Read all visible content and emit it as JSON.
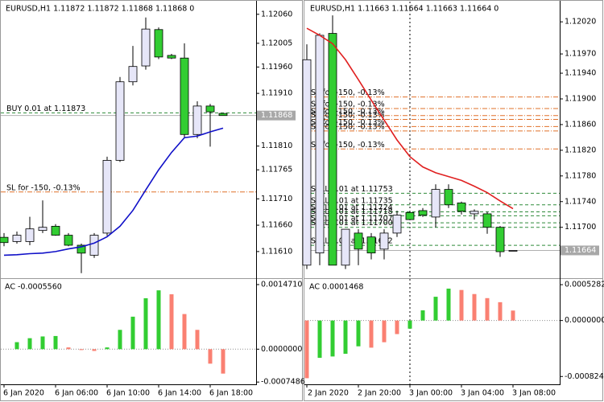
{
  "chart_data": [
    {
      "type": "candlestick",
      "title": "EURUSD,H1  1.11872 1.11872 1.11868 1.11868  0",
      "categories": [
        "6 Jan 2020",
        null,
        null,
        null,
        "6 Jan 06:00",
        null,
        null,
        null,
        "6 Jan 10:00",
        null,
        null,
        null,
        "6 Jan 14:00",
        null,
        null,
        null,
        "6 Jan 18:00",
        null
      ],
      "open": [
        1.11637,
        1.11629,
        1.11629,
        1.1165,
        1.11658,
        1.11641,
        1.11622,
        1.11603,
        1.11645,
        1.11783,
        1.11932,
        1.11962,
        1.12031,
        1.11982,
        1.11977,
        1.11832,
        1.11886,
        1.11872
      ],
      "high": [
        1.11645,
        1.11648,
        1.11676,
        1.11707,
        1.11662,
        1.11645,
        1.11625,
        1.11645,
        1.1179,
        1.11941,
        1.12,
        1.12054,
        1.12035,
        1.11985,
        1.12005,
        1.11895,
        1.1189,
        1.11872
      ],
      "low": [
        1.1162,
        1.11625,
        1.11622,
        1.11645,
        1.1164,
        1.1162,
        1.11569,
        1.11598,
        1.1164,
        1.1178,
        1.11925,
        1.11955,
        1.11975,
        1.11975,
        1.11825,
        1.11825,
        1.11809,
        1.11868
      ],
      "close": [
        1.11627,
        1.11641,
        1.11653,
        1.11656,
        1.11641,
        1.11622,
        1.11607,
        1.11641,
        1.11783,
        1.11932,
        1.11961,
        1.12032,
        1.11979,
        1.11977,
        1.11832,
        1.11886,
        1.11875,
        1.11868
      ],
      "up_color": "#e6e6f8",
      "down_color": "#32cd32",
      "ma": {
        "color": "#1010c8",
        "values": [
          1.11603,
          1.11604,
          1.11606,
          1.11607,
          1.1161,
          1.11615,
          1.11619,
          1.11626,
          1.11638,
          1.11658,
          1.11688,
          1.11727,
          1.11765,
          1.11798,
          1.11826,
          1.11829,
          1.11837,
          1.11844
        ]
      },
      "levels": [
        {
          "label": "BUY 0.01 at 1.11873",
          "value": 1.11873,
          "color": "#2e8b3a",
          "style": "dash"
        },
        {
          "label": "SL for -150, -0.13%",
          "value": 1.11723,
          "color": "#e0702a",
          "style": "dashdot"
        }
      ],
      "last": 1.11868,
      "ylim": [
        1.11561,
        1.12081
      ],
      "yticks": [
        {
          "value": 1.1206,
          "label": "1.12060"
        },
        {
          "value": 1.12005,
          "label": "1.12005"
        },
        {
          "value": 1.1196,
          "label": "1.11960"
        },
        {
          "value": 1.1191,
          "label": "1.11910"
        },
        {
          "value": 1.1181,
          "label": "1.11810"
        },
        {
          "value": 1.11765,
          "label": "1.11765"
        },
        {
          "value": 1.1171,
          "label": "1.11710"
        },
        {
          "value": 1.1166,
          "label": "1.11660"
        },
        {
          "value": 1.1161,
          "label": "1.11610"
        }
      ]
    },
    {
      "type": "bar",
      "title": "AC -0.0005560",
      "values": [
        null,
        0.00016,
        0.00025,
        0.00029,
        0.0003,
        4e-05,
        -2e-05,
        -4e-05,
        4e-05,
        0.00044,
        0.00074,
        0.00116,
        0.00134,
        0.00125,
        0.0008,
        0.00044,
        -0.00033,
        -0.000556
      ],
      "colors": [
        null,
        "#32cd32",
        "#32cd32",
        "#32cd32",
        "#32cd32",
        "#fa8072",
        "#fa8072",
        "#fa8072",
        "#32cd32",
        "#32cd32",
        "#32cd32",
        "#32cd32",
        "#32cd32",
        "#fa8072",
        "#fa8072",
        "#fa8072",
        "#fa8072",
        "#fa8072"
      ],
      "ylim": [
        -0.0008,
        0.00158
      ],
      "yticks": [
        {
          "value": 0.001471,
          "label": "0.0014710"
        },
        {
          "value": 0,
          "label": "0.0000000"
        },
        {
          "value": -0.0007486,
          "label": "-0.0007486"
        }
      ]
    },
    {
      "type": "candlestick",
      "title": "EURUSD,H1  1.11663 1.11664 1.11663 1.11664  0",
      "categories": [
        "2 Jan 2020",
        null,
        null,
        null,
        "2 Jan 20:00",
        null,
        null,
        null,
        "3 Jan 00:00",
        null,
        null,
        null,
        "3 Jan 04:00",
        null,
        null,
        null,
        "3 Jan 08:00"
      ],
      "open": [
        1.11641,
        1.1166,
        1.12002,
        1.11641,
        1.11691,
        1.11685,
        1.11666,
        1.11691,
        1.11723,
        1.11726,
        1.11716,
        1.11759,
        1.11738,
        1.11721,
        1.11721,
        1.117,
        1.11663
      ],
      "high": [
        1.11985,
        1.12002,
        1.1203,
        1.11697,
        1.11697,
        1.11691,
        1.11697,
        1.11726,
        1.11726,
        1.1173,
        1.11767,
        1.11767,
        1.1174,
        1.11728,
        1.11724,
        1.11702,
        1.11664
      ],
      "low": [
        1.11635,
        1.11641,
        1.11641,
        1.11635,
        1.11641,
        1.1165,
        1.1165,
        1.11685,
        1.11712,
        1.11716,
        1.117,
        1.1173,
        1.1172,
        1.11712,
        1.1169,
        1.11654,
        1.11663
      ],
      "close": [
        1.11961,
        1.11999,
        1.11641,
        1.11697,
        1.11666,
        1.1166,
        1.11691,
        1.11719,
        1.11712,
        1.11719,
        1.11759,
        1.11735,
        1.11725,
        1.11725,
        1.117,
        1.11662,
        1.11664
      ],
      "up_color": "#e6e6f8",
      "down_color": "#32cd32",
      "ma": {
        "color": "#e02020",
        "values": [
          1.1201,
          1.11999,
          1.11986,
          1.11961,
          1.1193,
          1.11898,
          1.11867,
          1.11836,
          1.1181,
          1.11794,
          1.11785,
          1.11779,
          1.11773,
          1.11764,
          1.11754,
          1.11741,
          1.11729
        ]
      },
      "levels": [
        {
          "label": "SL for -150, -0.13%",
          "value": 1.11903,
          "color": "#e0702a",
          "style": "dashdot"
        },
        {
          "label": "SL for -150, -0.13%",
          "value": 1.11885,
          "color": "#e0702a",
          "style": "dashdot"
        },
        {
          "label": "SL for -150, -0.13%",
          "value": 1.11874,
          "color": "#e0702a",
          "style": "dashdot"
        },
        {
          "label": "SL for -150, -0.13%",
          "value": 1.11868,
          "color": "#e0702a",
          "style": "dashdot"
        },
        {
          "label": "SL for -150, -0.13%",
          "value": 1.11857,
          "color": "#e0702a",
          "style": "dashdot"
        },
        {
          "label": "SL for -150, -0.13%",
          "value": 1.1185,
          "color": "#e0702a",
          "style": "dashdot"
        },
        {
          "label": "SL for -150, -0.13%",
          "value": 1.11822,
          "color": "#e0702a",
          "style": "dashdot"
        },
        {
          "label": "SELL 0.01 at 1.11753",
          "value": 1.11753,
          "color": "#2e8b3a",
          "style": "dash"
        },
        {
          "label": "SELL 0.01 at 1.11735",
          "value": 1.11735,
          "color": "#2e8b3a",
          "style": "dash"
        },
        {
          "label": "SELL 0.01 at 1.11724",
          "value": 1.11724,
          "color": "#2e8b3a",
          "style": "dash"
        },
        {
          "label": "SELL 0.01 at 1.11718",
          "value": 1.11718,
          "color": "#2e8b3a",
          "style": "dash"
        },
        {
          "label": "SELL 0.01 at 1.11707",
          "value": 1.11707,
          "color": "#2e8b3a",
          "style": "dash"
        },
        {
          "label": "SELL 0.01 at 1.11700",
          "value": 1.117,
          "color": "#2e8b3a",
          "style": "dash"
        },
        {
          "label": "SELL 0.01 at 1.11672",
          "value": 1.11672,
          "color": "#2e8b3a",
          "style": "dash"
        }
      ],
      "last": 1.11664,
      "ylim": [
        1.11622,
        1.12049
      ],
      "yticks": [
        {
          "value": 1.1202,
          "label": "1.12020"
        },
        {
          "value": 1.1197,
          "label": "1.11970"
        },
        {
          "value": 1.1194,
          "label": "1.11940"
        },
        {
          "value": 1.119,
          "label": "1.11900"
        },
        {
          "value": 1.1186,
          "label": "1.11860"
        },
        {
          "value": 1.1182,
          "label": "1.11820"
        },
        {
          "value": 1.1178,
          "label": "1.11780"
        },
        {
          "value": 1.1174,
          "label": "1.11740"
        },
        {
          "value": 1.117,
          "label": "1.11700"
        }
      ]
    },
    {
      "type": "bar",
      "title": "AC 0.0001468",
      "values": [
        -0.00085,
        -0.00055,
        -0.00053,
        -0.00049,
        -0.00038,
        -0.0004,
        -0.00032,
        -0.0002,
        -0.00012,
        0.00015,
        0.00035,
        0.00047,
        0.00045,
        0.00039,
        0.00033,
        0.00027,
        0.0001468
      ],
      "colors": [
        "#fa8072",
        "#32cd32",
        "#32cd32",
        "#32cd32",
        "#32cd32",
        "#fa8072",
        "#fa8072",
        "#fa8072",
        "#32cd32",
        "#32cd32",
        "#32cd32",
        "#32cd32",
        "#fa8072",
        "#fa8072",
        "#fa8072",
        "#fa8072",
        "#fa8072"
      ],
      "ylim": [
        -0.00094,
        0.0006
      ],
      "yticks": [
        {
          "value": 0.0005282,
          "label": "0.0005282"
        },
        {
          "value": 0,
          "label": "0.0000000"
        },
        {
          "value": -0.0008248,
          "label": "-0.0008248"
        }
      ]
    }
  ]
}
